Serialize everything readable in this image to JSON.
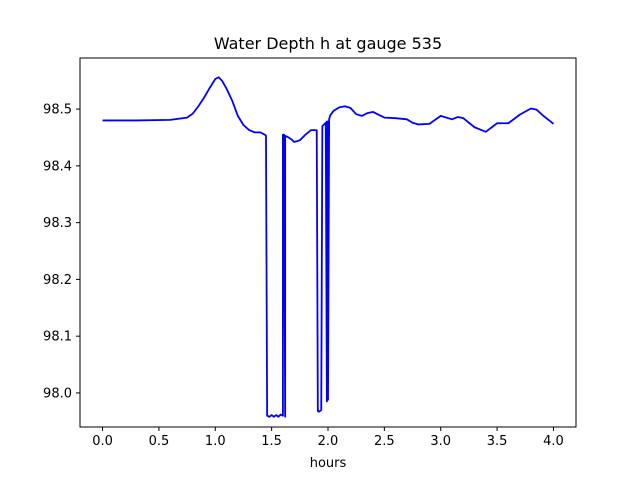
{
  "chart_data": {
    "type": "line",
    "title": "Water Depth h at gauge 535",
    "xlabel": "hours",
    "ylabel": "",
    "xlim": [
      -0.2,
      4.2
    ],
    "ylim": [
      97.94,
      98.59
    ],
    "x_ticks": [
      0.0,
      0.5,
      1.0,
      1.5,
      2.0,
      2.5,
      3.0,
      3.5,
      4.0
    ],
    "x_tick_labels": [
      "0.0",
      "0.5",
      "1.0",
      "1.5",
      "2.0",
      "2.5",
      "3.0",
      "3.5",
      "4.0"
    ],
    "y_ticks": [
      98.0,
      98.1,
      98.2,
      98.3,
      98.4,
      98.5
    ],
    "y_tick_labels": [
      "98.0",
      "98.1",
      "98.2",
      "98.3",
      "98.4",
      "98.5"
    ],
    "grid": false,
    "series": [
      {
        "color": "#0000ff",
        "x": [
          0.0,
          0.3,
          0.6,
          0.75,
          0.8,
          0.85,
          0.9,
          0.95,
          1.0,
          1.03,
          1.06,
          1.1,
          1.15,
          1.2,
          1.25,
          1.3,
          1.35,
          1.4,
          1.44,
          1.45,
          1.46,
          1.48,
          1.5,
          1.52,
          1.54,
          1.56,
          1.58,
          1.6,
          1.6,
          1.61,
          1.62,
          1.62,
          1.63,
          1.65,
          1.68,
          1.7,
          1.75,
          1.8,
          1.85,
          1.9,
          1.91,
          1.92,
          1.94,
          1.95,
          1.96,
          1.97,
          1.98,
          1.99,
          1.99,
          2.0,
          2.0,
          2.01,
          2.02,
          2.05,
          2.1,
          2.15,
          2.2,
          2.25,
          2.3,
          2.35,
          2.4,
          2.45,
          2.5,
          2.6,
          2.7,
          2.75,
          2.8,
          2.9,
          3.0,
          3.1,
          3.15,
          3.2,
          3.3,
          3.4,
          3.5,
          3.6,
          3.7,
          3.8,
          3.85,
          3.9,
          4.0
        ],
        "y": [
          98.48,
          98.48,
          98.481,
          98.485,
          98.492,
          98.505,
          98.52,
          98.537,
          98.553,
          98.556,
          98.55,
          98.536,
          98.515,
          98.488,
          98.472,
          98.463,
          98.459,
          98.459,
          98.455,
          98.453,
          97.96,
          97.958,
          97.961,
          97.958,
          97.961,
          97.958,
          97.962,
          97.96,
          98.455,
          98.455,
          97.958,
          98.453,
          98.452,
          98.45,
          98.446,
          98.442,
          98.445,
          98.455,
          98.463,
          98.463,
          97.968,
          97.967,
          97.97,
          98.47,
          98.472,
          98.474,
          98.476,
          97.985,
          98.478,
          98.478,
          97.988,
          98.482,
          98.489,
          98.497,
          98.503,
          98.505,
          98.502,
          98.491,
          98.488,
          98.493,
          98.495,
          98.49,
          98.485,
          98.484,
          98.482,
          98.476,
          98.473,
          98.474,
          98.488,
          98.482,
          98.486,
          98.484,
          98.468,
          98.46,
          98.475,
          98.475,
          98.49,
          98.501,
          98.499,
          98.49,
          98.474
        ]
      }
    ]
  }
}
